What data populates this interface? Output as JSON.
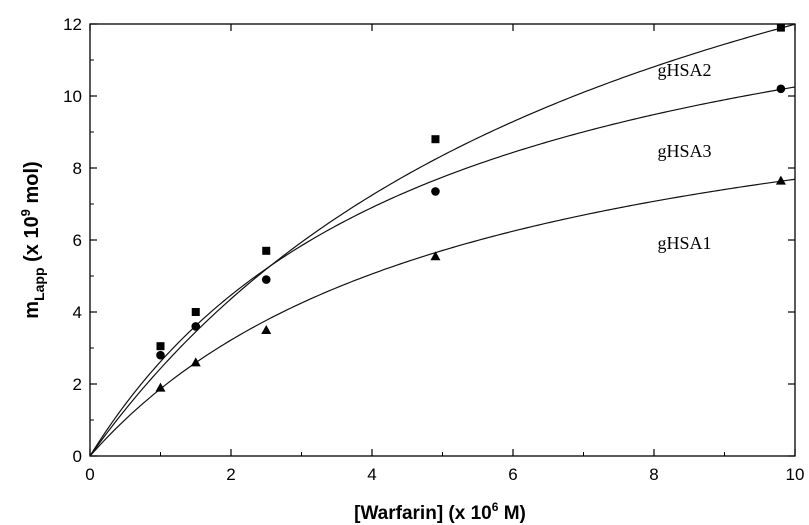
{
  "chart_data": {
    "type": "scatter",
    "xlabel": {
      "main": "[Warfarin]  (x 10",
      "sup": "6",
      "end": " M)"
    },
    "ylabel": {
      "main": "m",
      "sub": "Lapp",
      "mid": "  (x 10",
      "sup": "9",
      "end": " mol)"
    },
    "xlim": [
      0,
      10
    ],
    "ylim": [
      0,
      12
    ],
    "xticks": [
      0,
      2,
      4,
      6,
      8,
      10
    ],
    "yticks": [
      0,
      2,
      4,
      6,
      8,
      10,
      12
    ],
    "grid": false,
    "series": [
      {
        "name": "gHSA2",
        "marker": "square",
        "x": [
          1.0,
          1.5,
          2.5,
          4.9,
          9.8
        ],
        "y": [
          3.05,
          4.0,
          5.7,
          8.8,
          11.9
        ],
        "fit": {
          "bmax": 21.3,
          "kd": 7.76
        }
      },
      {
        "name": "gHSA3",
        "marker": "circle",
        "x": [
          1.0,
          1.5,
          2.5,
          4.9,
          9.8
        ],
        "y": [
          2.8,
          3.6,
          4.9,
          7.35,
          10.2
        ],
        "fit": {
          "bmax": 15.15,
          "kd": 4.78
        }
      },
      {
        "name": "gHSA1",
        "marker": "triangle",
        "x": [
          1.0,
          1.5,
          2.5,
          4.9,
          9.8
        ],
        "y": [
          1.9,
          2.6,
          3.5,
          5.55,
          7.65
        ],
        "fit": {
          "bmax": 11.77,
          "kd": 5.31
        }
      }
    ]
  }
}
